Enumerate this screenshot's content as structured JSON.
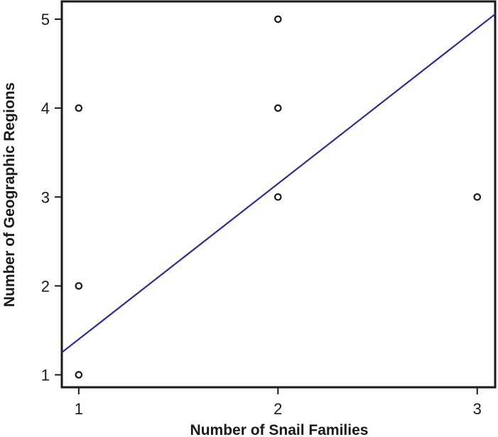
{
  "chart_data": {
    "type": "scatter",
    "xlabel": "Number of Snail Families",
    "ylabel": "Number of Geographic Regions",
    "xlim": [
      0.915,
      3.09
    ],
    "ylim": [
      0.86,
      5.2
    ],
    "xticks": [
      1,
      2,
      3
    ],
    "yticks": [
      1,
      2,
      3,
      4,
      5
    ],
    "points": [
      {
        "x": 1,
        "y": 1
      },
      {
        "x": 1,
        "y": 2
      },
      {
        "x": 1,
        "y": 4
      },
      {
        "x": 2,
        "y": 3
      },
      {
        "x": 2,
        "y": 4
      },
      {
        "x": 2,
        "y": 5
      },
      {
        "x": 3,
        "y": 3
      }
    ],
    "fit_line": {
      "slope": 1.75,
      "intercept": -0.35
    },
    "grid": false,
    "colors": {
      "fit_line": "#2b2e8f",
      "points": "#1a1a1a",
      "axes": "#1a1a1a"
    }
  }
}
